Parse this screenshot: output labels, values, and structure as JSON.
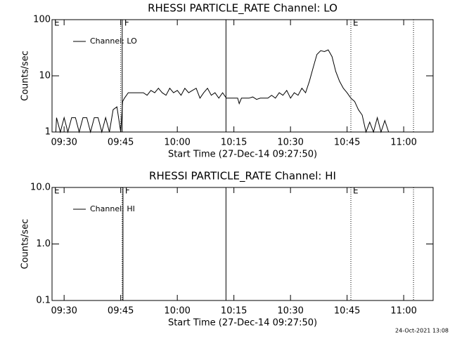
{
  "chart_data": [
    {
      "type": "line",
      "title": "RHESSI PARTICLE_RATE Channel: LO",
      "xlabel": "Start Time (27-Dec-14 09:27:50)",
      "ylabel": "Counts/sec",
      "log_y": true,
      "xlim": [
        566.8,
        667.8
      ],
      "ylim": [
        1,
        100
      ],
      "xticks": [
        {
          "value": 570,
          "label": "09:30"
        },
        {
          "value": 585,
          "label": "09:45"
        },
        {
          "value": 600,
          "label": "10:00"
        },
        {
          "value": 615,
          "label": "10:15"
        },
        {
          "value": 630,
          "label": "10:30"
        },
        {
          "value": 645,
          "label": "10:45"
        },
        {
          "value": 660,
          "label": "11:00"
        }
      ],
      "yticks": [
        1,
        10,
        100
      ],
      "x": [
        567.8,
        568,
        569,
        570,
        571,
        572,
        573,
        574,
        575,
        576,
        577,
        578,
        579,
        580,
        581,
        582,
        583,
        584,
        585,
        585.5,
        586,
        587,
        588,
        589,
        590,
        591,
        592,
        593,
        594,
        595,
        596,
        597,
        598,
        599,
        600,
        601,
        602,
        603,
        604,
        605,
        606,
        607,
        608,
        609,
        610,
        611,
        612,
        613,
        614,
        615,
        616,
        616.4,
        617,
        618,
        619,
        620,
        621,
        622,
        623,
        624,
        625,
        626,
        627,
        628,
        629,
        630,
        631,
        632,
        633,
        634,
        635,
        636,
        637,
        638,
        639,
        640,
        641,
        642,
        643,
        644,
        645,
        646,
        647,
        648,
        649,
        650,
        651,
        652,
        653,
        654,
        655,
        656
      ],
      "series": [
        {
          "name": "Channel: LO",
          "color": "#000000",
          "values": [
            1,
            1.8,
            1,
            1.8,
            1,
            1.8,
            1.8,
            1,
            1.8,
            1.8,
            1,
            1.8,
            1.8,
            1,
            1.8,
            1,
            2.5,
            2.8,
            1,
            3.5,
            4,
            5,
            5,
            5,
            5,
            5,
            4.5,
            5.5,
            5,
            6,
            5,
            4.5,
            6,
            5,
            5.5,
            4.5,
            6,
            5,
            5.5,
            6,
            4,
            5,
            6,
            4.5,
            5,
            4,
            5,
            4,
            4,
            4,
            4,
            3.2,
            4,
            4,
            4,
            4.2,
            3.8,
            4,
            4,
            4,
            4.5,
            4,
            5,
            4.5,
            5.5,
            4,
            5,
            4.5,
            6,
            5,
            8,
            14,
            24,
            28,
            27,
            29,
            22,
            12,
            8,
            6,
            5,
            4,
            3.5,
            2.5,
            2,
            1,
            1.5,
            1,
            1.8,
            1,
            1.6,
            1
          ]
        }
      ],
      "vlines": [
        {
          "x": 585,
          "style": "dotted"
        },
        {
          "x": 585.4,
          "style": "solid"
        },
        {
          "x": 612.9,
          "style": "solid"
        },
        {
          "x": 646,
          "style": "dotted"
        },
        {
          "x": 662.6,
          "style": "dotted"
        }
      ],
      "annotations": [
        {
          "x": 566.8,
          "text": "E"
        },
        {
          "x": 585.4,
          "text": "F"
        },
        {
          "x": 646,
          "text": "E"
        }
      ]
    },
    {
      "type": "line",
      "title": "RHESSI PARTICLE_RATE Channel: HI",
      "xlabel": "Start Time (27-Dec-14 09:27:50)",
      "ylabel": "Counts/sec",
      "log_y": true,
      "xlim": [
        566.8,
        667.8
      ],
      "ylim": [
        0.1,
        10
      ],
      "xticks": [
        {
          "value": 570,
          "label": "09:30"
        },
        {
          "value": 585,
          "label": "09:45"
        },
        {
          "value": 600,
          "label": "10:00"
        },
        {
          "value": 615,
          "label": "10:15"
        },
        {
          "value": 630,
          "label": "10:30"
        },
        {
          "value": 645,
          "label": "10:45"
        },
        {
          "value": 660,
          "label": "11:00"
        }
      ],
      "yticks": [
        0.1,
        {
          "value": 1,
          "label": "1.0"
        },
        {
          "value": 10,
          "label": "10.0"
        }
      ],
      "x": [],
      "series": [
        {
          "name": "Channel: HI",
          "color": "#000000",
          "values": []
        }
      ],
      "vlines": [
        {
          "x": 585.4,
          "style": "dotted"
        },
        {
          "x": 585.6,
          "style": "solid"
        },
        {
          "x": 612.9,
          "style": "solid"
        },
        {
          "x": 646,
          "style": "dotted"
        },
        {
          "x": 662.6,
          "style": "dotted"
        }
      ],
      "annotations": [
        {
          "x": 566.8,
          "text": "E"
        },
        {
          "x": 585.6,
          "text": "F"
        },
        {
          "x": 646,
          "text": "E"
        }
      ]
    }
  ],
  "timestamp": "24-Oct-2021 13:08"
}
